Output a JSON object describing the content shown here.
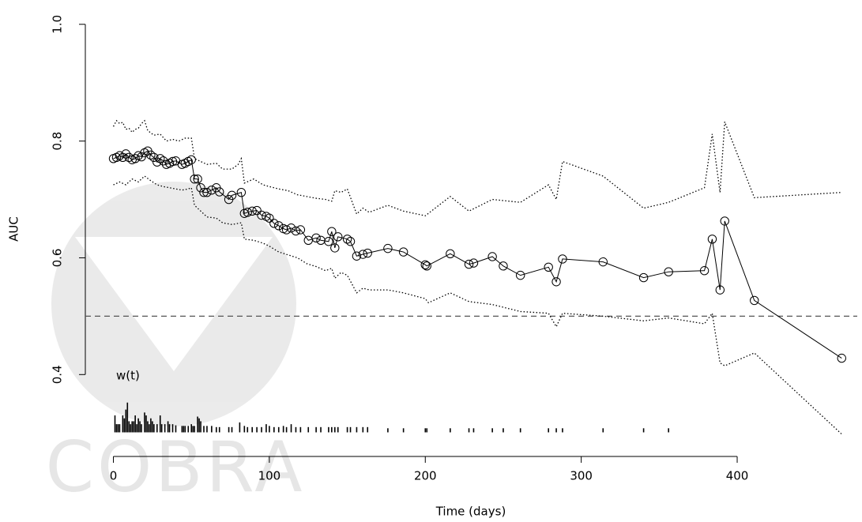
{
  "chart_data": {
    "type": "line",
    "xlabel": "Time (days)",
    "ylabel": "AUC",
    "watermark": "COBRA",
    "xlim": [
      -18,
      477
    ],
    "ylim": [
      0.28,
      1.02
    ],
    "xticks": [
      0,
      100,
      200,
      300,
      400
    ],
    "yticks": [
      0.4,
      0.6,
      0.8,
      {
        "value": 1,
        "label": "1.0"
      }
    ],
    "reference_line": 0.5,
    "series": [
      {
        "style": "points-line",
        "color": "#000000",
        "x": [
          0,
          2,
          4,
          6,
          8,
          10,
          12,
          14,
          16,
          18,
          20,
          22,
          24,
          26,
          28,
          30,
          32,
          34,
          36,
          38,
          40,
          44,
          46,
          48,
          50,
          52,
          54,
          56,
          58,
          60,
          63,
          66,
          68,
          74,
          76,
          82,
          84,
          86,
          89,
          92,
          95,
          98,
          100,
          103,
          106,
          109,
          111,
          114,
          117,
          120,
          125,
          130,
          133,
          138,
          140,
          142,
          144,
          150,
          152,
          156,
          160,
          163,
          176,
          186,
          200,
          201,
          216,
          228,
          231,
          243,
          250,
          261,
          279,
          284,
          288,
          314,
          340,
          356,
          379,
          384,
          389,
          392,
          411,
          467
        ],
        "values": [
          0.77,
          0.772,
          0.775,
          0.772,
          0.778,
          0.772,
          0.768,
          0.77,
          0.775,
          0.773,
          0.78,
          0.783,
          0.776,
          0.772,
          0.764,
          0.77,
          0.766,
          0.76,
          0.762,
          0.765,
          0.766,
          0.76,
          0.762,
          0.765,
          0.768,
          0.735,
          0.735,
          0.72,
          0.712,
          0.712,
          0.716,
          0.72,
          0.713,
          0.7,
          0.707,
          0.712,
          0.676,
          0.678,
          0.68,
          0.681,
          0.673,
          0.671,
          0.668,
          0.659,
          0.655,
          0.65,
          0.648,
          0.651,
          0.646,
          0.648,
          0.63,
          0.634,
          0.63,
          0.628,
          0.645,
          0.617,
          0.636,
          0.632,
          0.628,
          0.603,
          0.606,
          0.608,
          0.616,
          0.61,
          0.588,
          0.586,
          0.607,
          0.589,
          0.591,
          0.602,
          0.586,
          0.57,
          0.584,
          0.559,
          0.598,
          0.593,
          0.566,
          0.576,
          0.578,
          0.632,
          0.545,
          0.663,
          0.527,
          0.428
        ]
      },
      {
        "style": "dotted",
        "color": "#000000",
        "x": [
          0,
          2,
          4,
          6,
          8,
          10,
          12,
          14,
          16,
          18,
          20,
          22,
          26,
          30,
          34,
          38,
          42,
          46,
          50,
          52,
          56,
          60,
          66,
          70,
          76,
          80,
          82,
          84,
          90,
          96,
          100,
          106,
          112,
          118,
          124,
          130,
          136,
          140,
          142,
          146,
          150,
          156,
          160,
          164,
          176,
          186,
          200,
          216,
          228,
          243,
          261,
          279,
          284,
          288,
          314,
          340,
          356,
          379,
          384,
          389,
          392,
          411,
          467
        ],
        "values": [
          0.825,
          0.835,
          0.83,
          0.832,
          0.82,
          0.822,
          0.815,
          0.82,
          0.822,
          0.83,
          0.835,
          0.818,
          0.81,
          0.812,
          0.8,
          0.803,
          0.8,
          0.805,
          0.805,
          0.77,
          0.765,
          0.76,
          0.762,
          0.752,
          0.752,
          0.76,
          0.77,
          0.728,
          0.735,
          0.725,
          0.722,
          0.718,
          0.715,
          0.708,
          0.705,
          0.702,
          0.7,
          0.697,
          0.715,
          0.712,
          0.718,
          0.675,
          0.685,
          0.678,
          0.69,
          0.68,
          0.672,
          0.705,
          0.68,
          0.7,
          0.695,
          0.725,
          0.7,
          0.765,
          0.74,
          0.685,
          0.695,
          0.72,
          0.812,
          0.712,
          0.833,
          0.703,
          0.712
        ]
      },
      {
        "style": "dotted",
        "color": "#000000",
        "x": [
          0,
          4,
          8,
          12,
          16,
          20,
          24,
          28,
          32,
          36,
          40,
          44,
          48,
          50,
          52,
          56,
          60,
          66,
          70,
          76,
          82,
          84,
          90,
          96,
          100,
          106,
          112,
          118,
          124,
          130,
          136,
          140,
          142,
          146,
          150,
          156,
          160,
          164,
          176,
          186,
          200,
          202,
          216,
          228,
          243,
          261,
          279,
          284,
          288,
          314,
          340,
          356,
          379,
          384,
          389,
          392,
          411,
          467
        ],
        "values": [
          0.725,
          0.73,
          0.725,
          0.735,
          0.73,
          0.74,
          0.732,
          0.725,
          0.722,
          0.72,
          0.718,
          0.716,
          0.718,
          0.72,
          0.69,
          0.68,
          0.67,
          0.668,
          0.66,
          0.657,
          0.66,
          0.632,
          0.63,
          0.625,
          0.62,
          0.61,
          0.605,
          0.6,
          0.59,
          0.585,
          0.578,
          0.582,
          0.565,
          0.575,
          0.57,
          0.54,
          0.548,
          0.545,
          0.545,
          0.54,
          0.53,
          0.523,
          0.54,
          0.525,
          0.52,
          0.508,
          0.505,
          0.482,
          0.505,
          0.5,
          0.492,
          0.497,
          0.487,
          0.505,
          0.42,
          0.415,
          0.437,
          0.298
        ]
      }
    ],
    "weights": {
      "label": "w(t)",
      "base": 0.301,
      "x": [
        1,
        2,
        3,
        4,
        6,
        7,
        8,
        9,
        10,
        11,
        12,
        13,
        14,
        15,
        16,
        17,
        18,
        20,
        21,
        22,
        23,
        24,
        25,
        26,
        28,
        30,
        31,
        33,
        35,
        36,
        38,
        40,
        44,
        45,
        46,
        48,
        50,
        51,
        52,
        54,
        55,
        56,
        58,
        60,
        63,
        66,
        68,
        74,
        76,
        81,
        84,
        86,
        89,
        92,
        95,
        98,
        100,
        103,
        106,
        109,
        111,
        114,
        117,
        120,
        125,
        130,
        133,
        138,
        140,
        142,
        144,
        150,
        152,
        156,
        160,
        163,
        176,
        186,
        200,
        201,
        216,
        228,
        231,
        243,
        250,
        261,
        279,
        284,
        288,
        314,
        340,
        356
      ],
      "values": [
        0.33,
        0.315,
        0.315,
        0.315,
        0.33,
        0.325,
        0.34,
        0.352,
        0.32,
        0.315,
        0.32,
        0.32,
        0.33,
        0.315,
        0.325,
        0.32,
        0.315,
        0.335,
        0.33,
        0.32,
        0.315,
        0.325,
        0.32,
        0.315,
        0.315,
        0.33,
        0.315,
        0.315,
        0.32,
        0.315,
        0.315,
        0.313,
        0.312,
        0.312,
        0.312,
        0.312,
        0.315,
        0.312,
        0.312,
        0.328,
        0.325,
        0.32,
        0.312,
        0.312,
        0.312,
        0.31,
        0.31,
        0.31,
        0.31,
        0.318,
        0.312,
        0.31,
        0.31,
        0.31,
        0.31,
        0.315,
        0.312,
        0.31,
        0.31,
        0.312,
        0.31,
        0.315,
        0.31,
        0.31,
        0.31,
        0.31,
        0.31,
        0.31,
        0.31,
        0.31,
        0.31,
        0.31,
        0.31,
        0.31,
        0.31,
        0.31,
        0.308,
        0.308,
        0.308,
        0.308,
        0.308,
        0.308,
        0.308,
        0.308,
        0.308,
        0.308,
        0.308,
        0.308,
        0.308,
        0.308,
        0.308,
        0.308
      ]
    }
  }
}
